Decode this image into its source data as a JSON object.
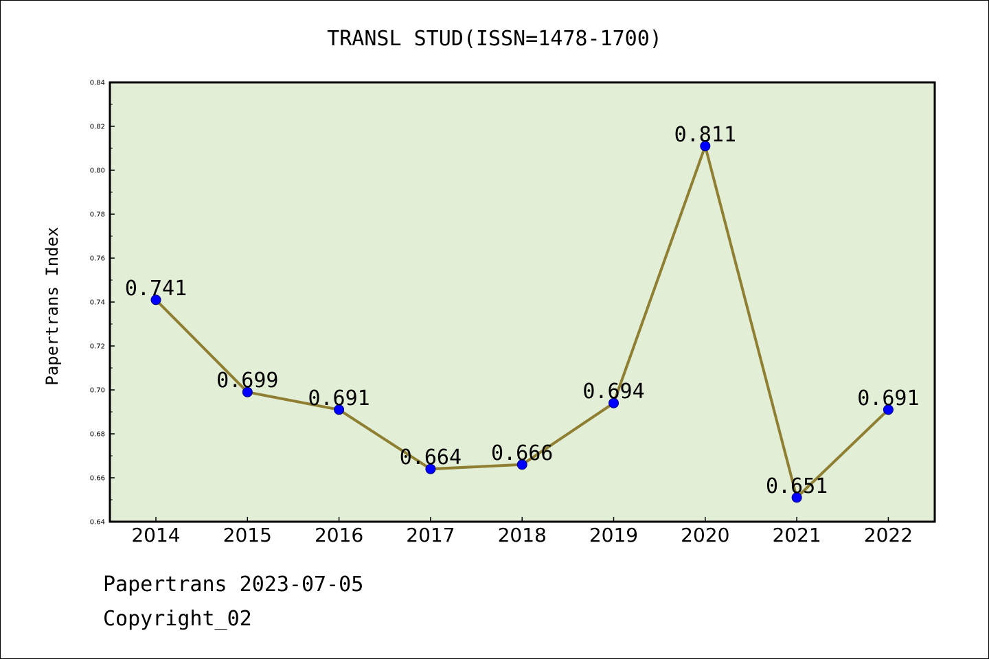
{
  "chart_data": {
    "type": "line",
    "title": "TRANSL STUD(ISSN=1478-1700)",
    "xlabel": "",
    "ylabel": "Papertrans Index",
    "categories": [
      "2014",
      "2015",
      "2016",
      "2017",
      "2018",
      "2019",
      "2020",
      "2021",
      "2022"
    ],
    "series": [
      {
        "values": [
          0.741,
          0.699,
          0.691,
          0.664,
          0.666,
          0.694,
          0.811,
          0.651,
          0.691
        ],
        "data_labels": [
          "0.741",
          "0.699",
          "0.691",
          "0.664",
          "0.666",
          "0.694",
          "0.811",
          "0.651",
          "0.691"
        ]
      }
    ],
    "ylim": [
      0.64,
      0.84
    ],
    "yticks": [
      "0.64",
      "0.66",
      "0.68",
      "0.70",
      "0.72",
      "0.74",
      "0.76",
      "0.78",
      "0.80",
      "0.82",
      "0.84"
    ],
    "grid": false,
    "legend": "none",
    "colors": {
      "plot_background": "#e2efd6",
      "line": "#8f7f33",
      "marker": "#0000ff",
      "marker_edge": "#000080"
    }
  },
  "footer": {
    "line1": "Papertrans 2023-07-05",
    "line2": "Copyright_02"
  }
}
